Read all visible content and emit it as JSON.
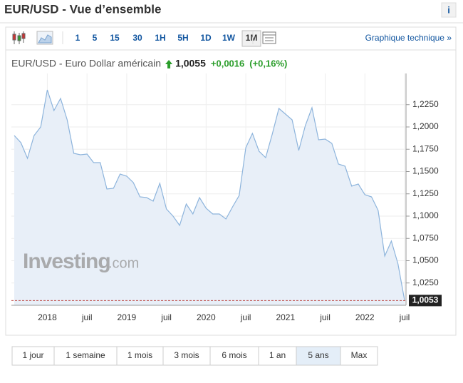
{
  "header": {
    "title": "EUR/USD - Vue d’ensemble",
    "info": "i"
  },
  "toolbar": {
    "timeframes": [
      "1",
      "5",
      "15",
      "30",
      "1H",
      "5H",
      "1D",
      "1W",
      "1M"
    ],
    "selected": 8,
    "link": "Graphique technique »"
  },
  "quote": {
    "name": "EUR/USD - Euro Dollar américain",
    "price": "1,0055",
    "change": "+0,0016",
    "change_pct": "(+0,16%)"
  },
  "watermark": {
    "brand": "Investing",
    "suffix": ".com"
  },
  "chart_data": {
    "type": "area",
    "color": "#8db4dc",
    "fill": "#e8eff8",
    "grid": true,
    "categories": [
      null,
      null,
      null,
      null,
      null,
      "2018",
      null,
      null,
      null,
      null,
      null,
      "juil",
      null,
      null,
      null,
      null,
      null,
      "2019",
      null,
      null,
      null,
      null,
      null,
      "juil",
      null,
      null,
      null,
      null,
      null,
      "2020",
      null,
      null,
      null,
      null,
      null,
      "juil",
      null,
      null,
      null,
      null,
      null,
      "2021",
      null,
      null,
      null,
      null,
      null,
      "juil",
      null,
      null,
      null,
      null,
      null,
      "2022",
      null,
      null,
      null,
      null,
      null,
      "juil"
    ],
    "values": [
      1.1904,
      1.1824,
      1.1648,
      1.1904,
      1.2,
      1.2416,
      1.2184,
      1.232,
      1.208,
      1.1704,
      1.1688,
      1.1696,
      1.16,
      1.16,
      1.1304,
      1.1312,
      1.1472,
      1.1448,
      1.1376,
      1.1216,
      1.1208,
      1.1168,
      1.1368,
      1.108,
      1.1,
      1.0896,
      1.1136,
      1.1024,
      1.1208,
      1.1088,
      1.1024,
      1.1024,
      1.0968,
      1.1104,
      1.1232,
      1.1768,
      1.1928,
      1.1728,
      1.1656,
      1.192,
      1.2208,
      1.2144,
      1.208,
      1.1736,
      1.2016,
      1.2216,
      1.1856,
      1.1864,
      1.1816,
      1.1584,
      1.156,
      1.1336,
      1.136,
      1.124,
      1.1216,
      1.1064,
      1.0552,
      1.072,
      1.0464,
      1.0055
    ],
    "ylim": [
      1.0,
      1.26
    ],
    "yticks": [
      {
        "value": 1.025,
        "label": "1,0250"
      },
      {
        "value": 1.05,
        "label": "1,0500"
      },
      {
        "value": 1.075,
        "label": "1,0750"
      },
      {
        "value": 1.1,
        "label": "1,1000"
      },
      {
        "value": 1.125,
        "label": "1,1250"
      },
      {
        "value": 1.15,
        "label": "1,1500"
      },
      {
        "value": 1.175,
        "label": "1,1750"
      },
      {
        "value": 1.2,
        "label": "1,2000"
      },
      {
        "value": 1.225,
        "label": "1,2250"
      }
    ],
    "price_line": {
      "value": 1.0053,
      "label": "1,0053",
      "color": "#c0504d"
    }
  },
  "ranges": {
    "buttons": [
      "1 jour",
      "1 semaine",
      "1 mois",
      "3 mois",
      "6 mois",
      "1 an",
      "5 ans",
      "Max"
    ],
    "selected": 6
  }
}
